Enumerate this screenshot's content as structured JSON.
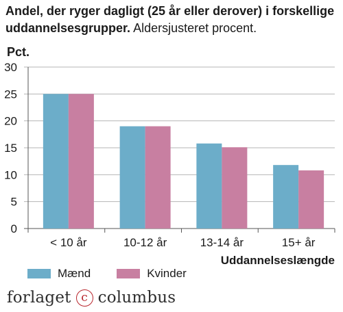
{
  "header": {
    "title_bold": "Andel, der ryger dagligt (25 år eller derover) i forskellige uddannelsesgrupper.",
    "title_rest": "Aldersjusteret procent."
  },
  "chart_data": {
    "type": "bar",
    "ylabel": "Pct.",
    "xlabel": "Uddannelseslængde",
    "categories": [
      "< 10 år",
      "10-12 år",
      "13-14 år",
      "15+ år"
    ],
    "series": [
      {
        "name": "Mænd",
        "values": [
          25,
          19,
          15.8,
          11.8
        ],
        "color": "#6cadc9"
      },
      {
        "name": "Kvinder",
        "values": [
          25,
          19,
          15.1,
          10.8
        ],
        "color": "#c87fa1"
      }
    ],
    "ylim": [
      0,
      30
    ],
    "yticks": [
      0,
      5,
      10,
      15,
      20,
      25,
      30
    ],
    "grid": true,
    "legend_position": "bottom-left"
  },
  "legend": {
    "items": [
      {
        "label": "Mænd",
        "color": "#6cadc9"
      },
      {
        "label": "Kvinder",
        "color": "#c87fa1"
      }
    ]
  },
  "brand": {
    "left": "forlaget",
    "symbol": "c",
    "right": "columbus"
  }
}
